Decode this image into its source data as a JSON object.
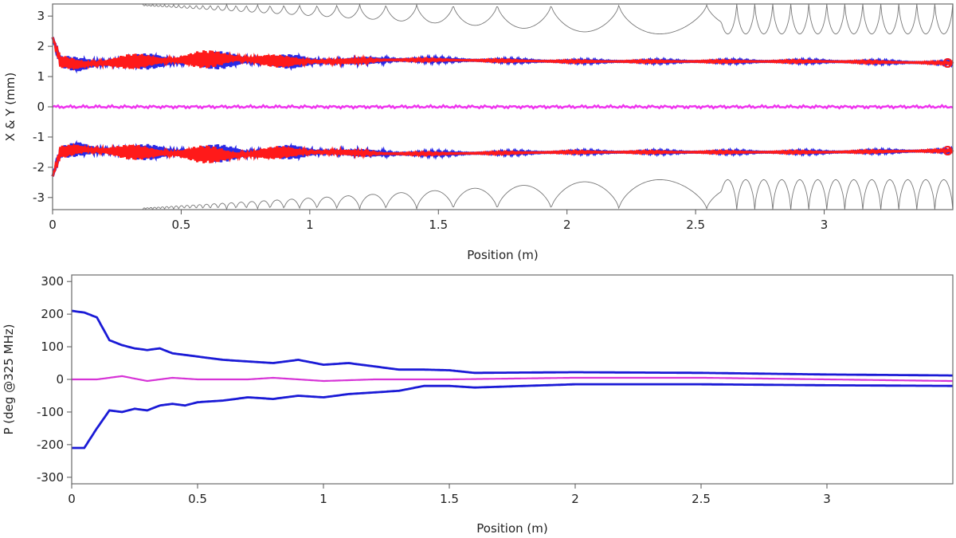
{
  "chart_data": [
    {
      "type": "line",
      "xlabel": "Position (m)",
      "ylabel": "X & Y (mm)",
      "xlim": [
        0,
        3.5
      ],
      "ylim": [
        -3.4,
        3.4
      ],
      "xticks": [
        "0",
        "0.5",
        "1",
        "1.5",
        "2",
        "2.5",
        "3"
      ],
      "yticks": [
        "3",
        "2",
        "1",
        "0",
        "-1",
        "-2",
        "-3"
      ],
      "grid": false,
      "colors": {
        "x_envelope": "#2a2ae6",
        "y_envelope": "#ff1a1a",
        "centroid": "#ee33ee",
        "aperture": "#777777"
      },
      "series": [
        {
          "key": "x_envelope",
          "x": [
            0,
            0.03,
            0.1,
            0.3,
            0.5,
            0.7,
            0.9,
            1.1,
            1.3,
            1.5,
            2.0,
            2.5,
            3.0,
            3.5
          ],
          "values": [
            2.3,
            1.5,
            1.4,
            1.5,
            1.5,
            1.55,
            1.5,
            1.5,
            1.55,
            1.55,
            1.5,
            1.5,
            1.5,
            1.45
          ],
          "oscillation": [
            0,
            0.2,
            0.25,
            0.25,
            0.3,
            0.3,
            0.25,
            0.15,
            0.1,
            0.05,
            0.04,
            0.04,
            0.04,
            0.04
          ]
        },
        {
          "key": "y_envelope",
          "x": [
            0,
            0.03,
            0.1,
            0.3,
            0.5,
            0.7,
            0.9,
            1.1,
            1.3,
            1.5,
            2.0,
            2.5,
            3.0,
            3.5
          ],
          "values": [
            2.3,
            1.5,
            1.4,
            1.5,
            1.55,
            1.6,
            1.5,
            1.5,
            1.55,
            1.55,
            1.5,
            1.5,
            1.5,
            1.45
          ],
          "oscillation": [
            0,
            0.2,
            0.25,
            0.25,
            0.3,
            0.3,
            0.2,
            0.1,
            0.05,
            0.03,
            0.03,
            0.03,
            0.03,
            0.03
          ]
        },
        {
          "key": "centroid",
          "x": [
            0,
            3.5
          ],
          "values": [
            0,
            0
          ]
        },
        {
          "key": "aperture",
          "x": [
            0,
            0.5,
            1.0,
            1.2,
            1.35,
            1.5,
            3.5
          ],
          "values": [
            3.4,
            3.4,
            3.4,
            3.3,
            3.0,
            2.6,
            2.2
          ],
          "cells": {
            "start": 0.35,
            "end": 3.5,
            "period_start": 0.012,
            "period_end": 0.07
          }
        }
      ]
    },
    {
      "type": "line",
      "xlabel": "Position (m)",
      "ylabel": "P (deg @325 MHz)",
      "xlim": [
        0,
        3.5
      ],
      "ylim": [
        -320,
        320
      ],
      "xticks": [
        "0",
        "0.5",
        "1",
        "1.5",
        "2",
        "2.5",
        "3"
      ],
      "yticks": [
        "300",
        "200",
        "100",
        "0",
        "-100",
        "-200",
        "-300"
      ],
      "grid": false,
      "colors": {
        "upper_envelope": "#1a1ad6",
        "lower_envelope": "#1a1ad6",
        "centroid": "#d633d6"
      },
      "series": [
        {
          "key": "upper_envelope",
          "x": [
            0,
            0.05,
            0.1,
            0.15,
            0.2,
            0.25,
            0.3,
            0.35,
            0.4,
            0.45,
            0.5,
            0.6,
            0.7,
            0.8,
            0.9,
            1.0,
            1.1,
            1.2,
            1.3,
            1.4,
            1.5,
            1.6,
            2.0,
            2.5,
            3.0,
            3.5
          ],
          "values": [
            210,
            205,
            190,
            120,
            105,
            95,
            90,
            95,
            80,
            75,
            70,
            60,
            55,
            50,
            60,
            45,
            50,
            40,
            30,
            30,
            28,
            20,
            22,
            20,
            15,
            12
          ]
        },
        {
          "key": "lower_envelope",
          "x": [
            0,
            0.05,
            0.1,
            0.15,
            0.2,
            0.25,
            0.3,
            0.35,
            0.4,
            0.45,
            0.5,
            0.6,
            0.7,
            0.8,
            0.9,
            1.0,
            1.1,
            1.2,
            1.3,
            1.4,
            1.5,
            1.6,
            2.0,
            2.5,
            3.0,
            3.5
          ],
          "values": [
            -210,
            -210,
            -150,
            -95,
            -100,
            -90,
            -95,
            -80,
            -75,
            -80,
            -70,
            -65,
            -55,
            -60,
            -50,
            -55,
            -45,
            -40,
            -35,
            -20,
            -20,
            -25,
            -15,
            -15,
            -18,
            -20
          ]
        },
        {
          "key": "centroid",
          "x": [
            0,
            0.1,
            0.2,
            0.3,
            0.4,
            0.5,
            0.6,
            0.7,
            0.8,
            0.9,
            1.0,
            1.2,
            1.5,
            2.0,
            2.5,
            3.0,
            3.5
          ],
          "values": [
            0,
            0,
            10,
            -5,
            5,
            0,
            0,
            0,
            5,
            0,
            -5,
            0,
            0,
            5,
            5,
            0,
            -5
          ]
        }
      ]
    }
  ]
}
